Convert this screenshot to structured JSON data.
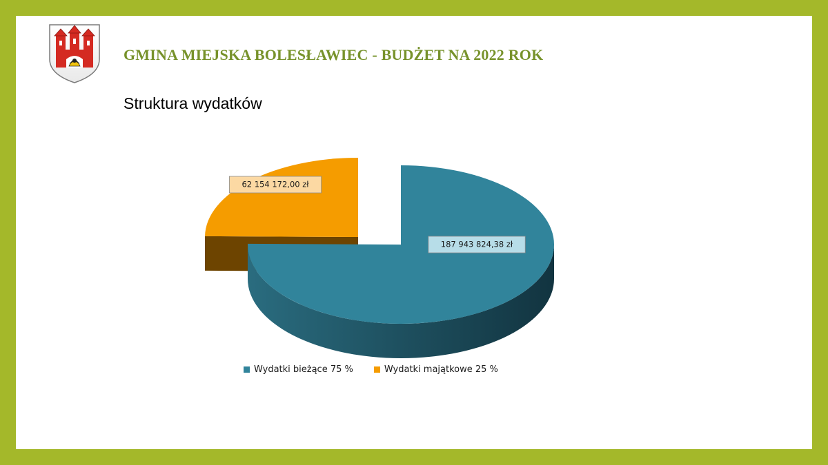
{
  "header": {
    "title": "GMINA MIEJSKA BOLESŁAWIEC - BUDŻET NA 2022 ROK",
    "subtitle": "Struktura wydatków"
  },
  "colors": {
    "frame": "#a4b82a",
    "title": "#77922b",
    "current": "#31849b",
    "current_label_bg": "#b7dde8",
    "property": "#f59c00",
    "property_label_bg": "#fcd9a3"
  },
  "chart_data": {
    "type": "pie",
    "style": "3d-exploded",
    "title": "",
    "categories": [
      "Wydatki bieżące 75 %",
      "Wydatki majątkowe 25 %"
    ],
    "values": [
      187943824.38,
      62154172.0
    ],
    "percentages": [
      75,
      25
    ],
    "data_labels": [
      "187 943 824,38 zł",
      "62 154 172,00 zł"
    ],
    "legend_position": "bottom"
  }
}
